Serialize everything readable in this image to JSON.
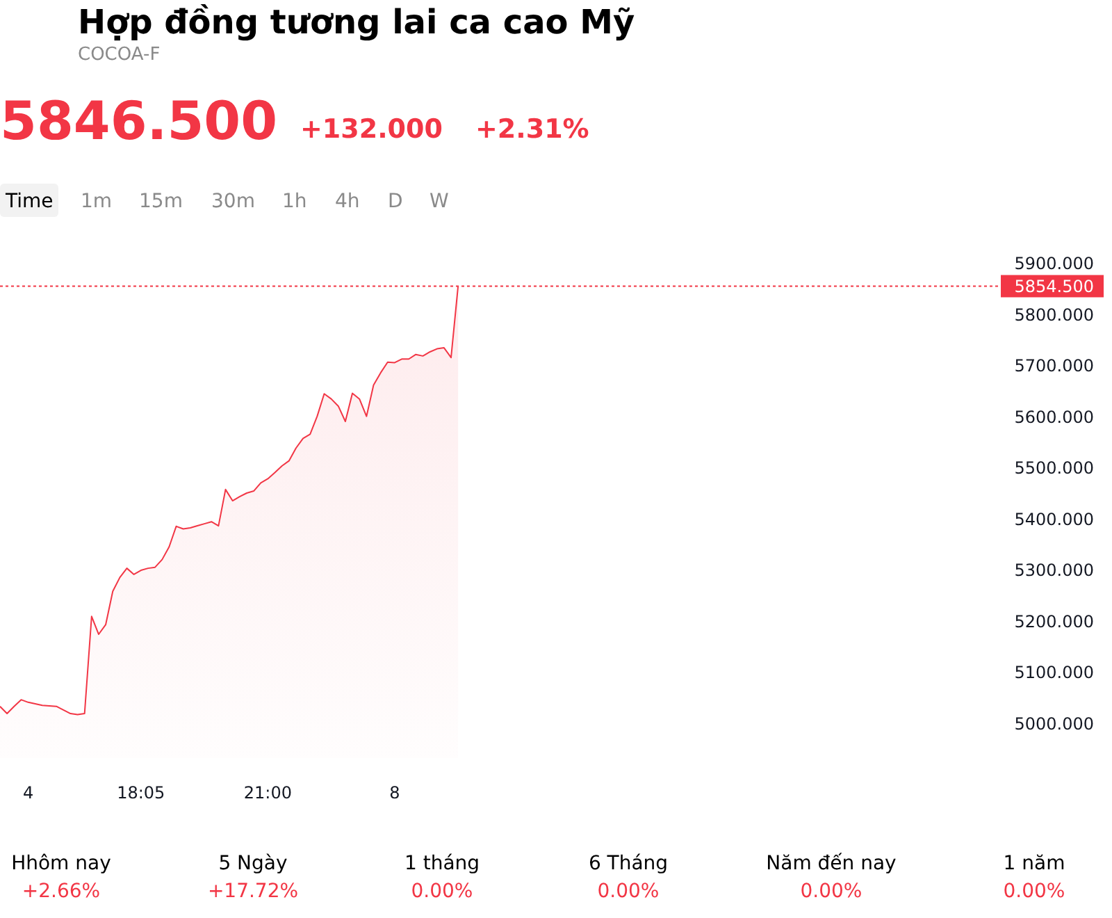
{
  "chart_data": {
    "type": "area",
    "title": "Hợp đồng tương lai ca cao Mỹ",
    "subtitle": "COCOA-F",
    "annotations": [
      "5846.500",
      "+132.000",
      "+2.31%",
      "Time",
      "1m",
      "15m",
      "30m",
      "1h",
      "4h",
      "D",
      "W",
      "Hhôm nay",
      "+2.66%",
      "5 Ngày",
      "+17.72%",
      "1 tháng",
      "0.00%",
      "6 Tháng",
      "0.00%",
      "Năm đến nay",
      "0.00%",
      "1 năm",
      "0.00%"
    ],
    "categories": [
      null,
      null,
      null,
      null,
      "4",
      null,
      null,
      null,
      null,
      null,
      null,
      null,
      null,
      null,
      null,
      null,
      null,
      null,
      null,
      null,
      "18:05",
      null,
      null,
      null,
      null,
      null,
      null,
      null,
      null,
      null,
      null,
      null,
      null,
      null,
      null,
      null,
      null,
      null,
      "21:00",
      null,
      null,
      null,
      null,
      null,
      null,
      null,
      null,
      null,
      null,
      null,
      null,
      null,
      null,
      null,
      null,
      null,
      "8",
      null,
      null,
      null,
      null,
      null,
      null,
      null,
      null,
      null,
      null,
      null,
      null,
      null,
      null,
      null,
      null,
      null,
      null,
      null,
      null,
      null,
      null,
      null,
      null,
      null,
      null,
      null,
      null,
      null,
      null,
      null,
      null,
      null,
      null,
      null,
      null,
      null,
      null,
      null,
      null,
      null,
      null,
      null,
      null,
      null,
      null,
      null,
      null,
      null,
      null,
      null,
      null,
      null,
      null,
      null,
      null,
      null,
      null,
      null,
      null,
      null,
      null,
      null,
      null,
      null,
      null,
      null,
      null,
      null,
      null,
      null,
      null,
      null,
      null,
      null,
      null,
      null,
      null,
      null,
      null,
      null,
      null,
      null,
      null,
      null
    ],
    "series": [
      {
        "color": "#f23645",
        "values": [
          5033,
          5019,
          5033,
          5046,
          5041,
          5038,
          5035,
          5034,
          5033,
          5026,
          5019,
          5017,
          5019,
          5209,
          5174,
          5193,
          5258,
          5285,
          5303,
          5291,
          5299,
          5303,
          5305,
          5320,
          5345,
          5385,
          5380,
          5382,
          5386,
          5390,
          5394,
          5386,
          5457,
          5435,
          5443,
          5450,
          5454,
          5470,
          5478,
          5490,
          5503,
          5513,
          5538,
          5557,
          5565,
          5600,
          5644,
          5634,
          5620,
          5590,
          5645,
          5634,
          5600,
          5661,
          5685,
          5706,
          5705,
          5712,
          5712,
          5721,
          5718,
          5726,
          5732,
          5734,
          5715,
          5855,
          null,
          null,
          null,
          null,
          null,
          null,
          null,
          null,
          null,
          null,
          null,
          null,
          null,
          null,
          null,
          null,
          null,
          null,
          null,
          null,
          null,
          null,
          null,
          null,
          null,
          null,
          null,
          null,
          null,
          null,
          null,
          null,
          null,
          null,
          null,
          null,
          null,
          null,
          null,
          null,
          null,
          null,
          null,
          null,
          null,
          null,
          null,
          null,
          null,
          null,
          null,
          null,
          null,
          null,
          null,
          null,
          null,
          null,
          null,
          null,
          null,
          null,
          null,
          null,
          null,
          null,
          null,
          null,
          null,
          null,
          null,
          null,
          null,
          null,
          null,
          null
        ]
      }
    ],
    "ylim": [
      5000,
      5900
    ],
    "yticks": [
      {
        "value": 5000,
        "label": "5000.000"
      },
      {
        "value": 5100,
        "label": "5100.000"
      },
      {
        "value": 5200,
        "label": "5200.000"
      },
      {
        "value": 5300,
        "label": "5300.000"
      },
      {
        "value": 5400,
        "label": "5400.000"
      },
      {
        "value": 5500,
        "label": "5500.000"
      },
      {
        "value": 5600,
        "label": "5600.000"
      },
      {
        "value": 5700,
        "label": "5700.000"
      },
      {
        "value": 5800,
        "label": "5800.000"
      },
      {
        "value": 5900,
        "label": "5900.000"
      }
    ],
    "ref_lines": [
      {
        "axis": "y",
        "value": 5854.5,
        "label": "5854.500",
        "color": "#f23645",
        "line_style": "dotted"
      }
    ],
    "grid": false
  }
}
